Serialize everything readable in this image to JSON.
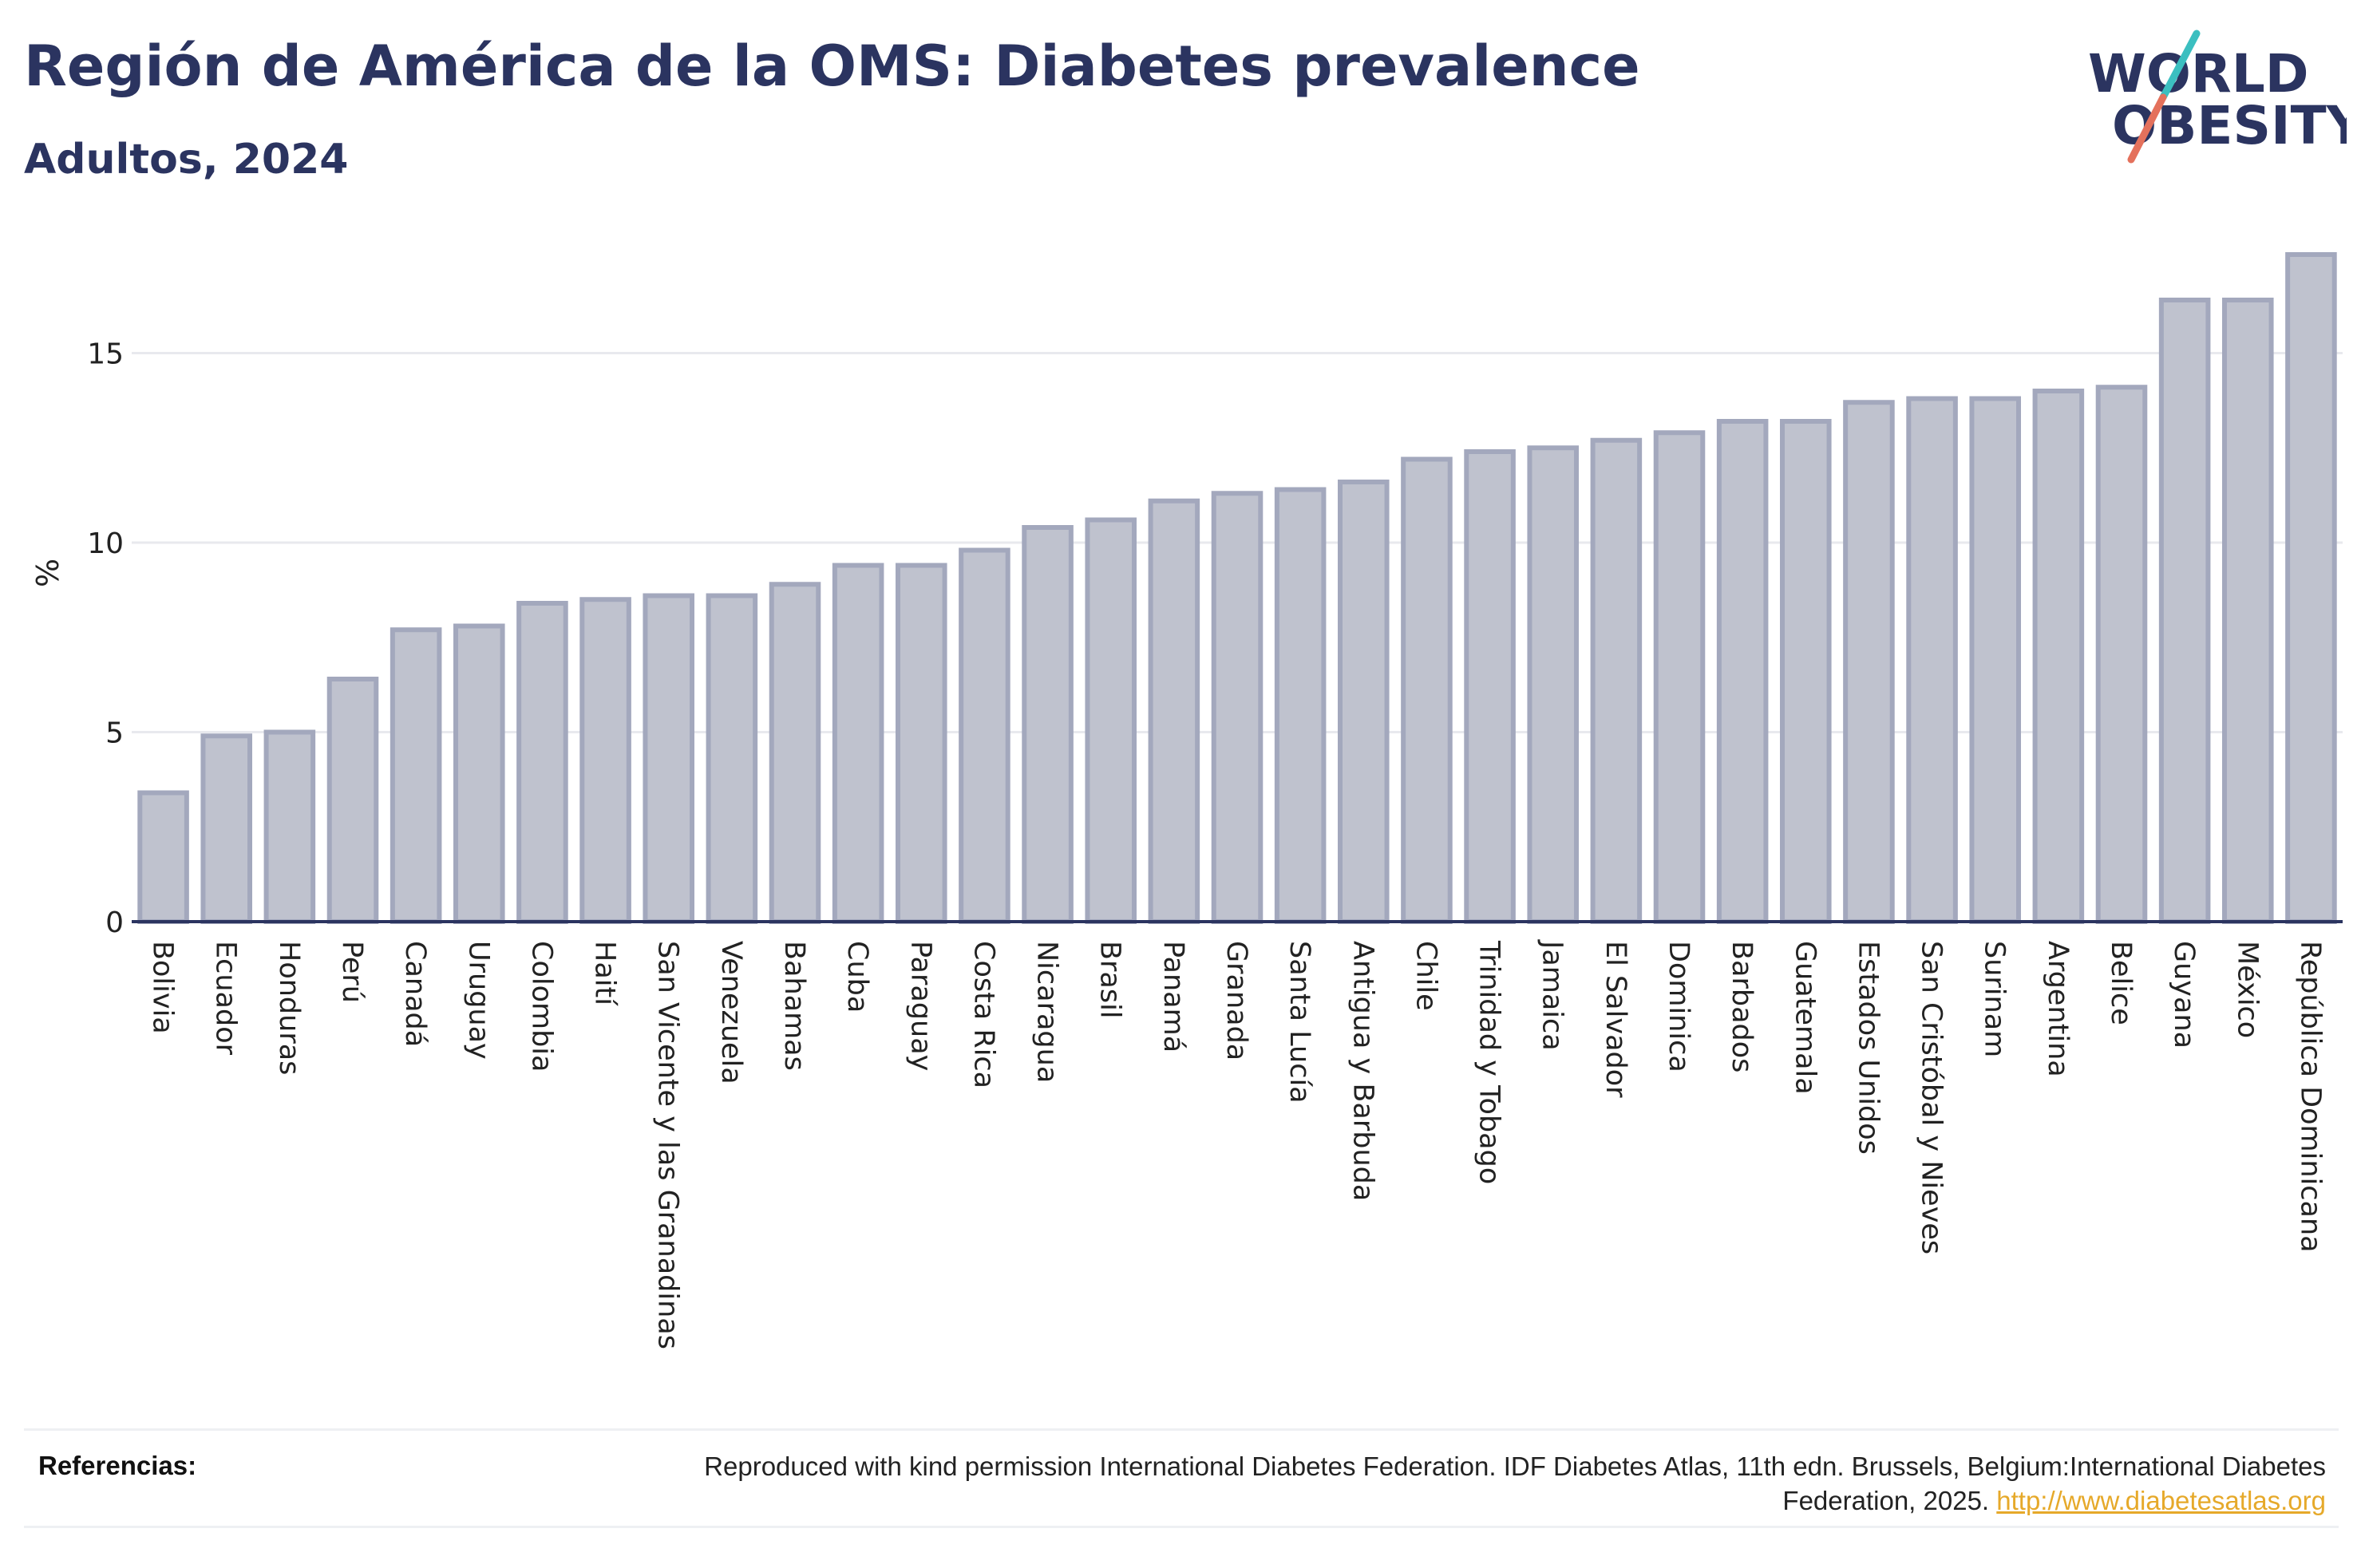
{
  "header": {
    "title": "Región de América de la OMS: Diabetes prevalence",
    "subtitle": "Adultos, 2024"
  },
  "logo": {
    "line1": "WORLD",
    "line2": "OBESITY",
    "slash_colors": [
      "#3bbfc0",
      "#e4715c"
    ],
    "text_color": "#2b3460"
  },
  "colors": {
    "bar_fill": "#bfc2ce",
    "bar_stroke": "#a3a8bd",
    "grid": "#e8e9ee",
    "axis": "#2b3460",
    "link": "#e6a92a"
  },
  "chart_data": {
    "type": "bar",
    "ylabel": "%",
    "xlabel": "",
    "ylim": [
      0,
      18
    ],
    "yticks": [
      0,
      5,
      10,
      15
    ],
    "grid": true,
    "categories": [
      "Bolivia",
      "Ecuador",
      "Honduras",
      "Perú",
      "Canadá",
      "Uruguay",
      "Colombia",
      "Haití",
      "San Vicente y las Granadinas",
      "Venezuela",
      "Bahamas",
      "Cuba",
      "Paraguay",
      "Costa Rica",
      "Nicaragua",
      "Brasil",
      "Panamá",
      "Granada",
      "Santa Lucía",
      "Antigua y Barbuda",
      "Chile",
      "Trinidad y Tobago",
      "Jamaica",
      "El Salvador",
      "Dominica",
      "Barbados",
      "Guatemala",
      "Estados Unidos",
      "San Cristóbal y Nieves",
      "Surinam",
      "Argentina",
      "Belice",
      "Guyana",
      "México",
      "República Dominicana"
    ],
    "values": [
      3.4,
      4.9,
      5.0,
      6.4,
      7.7,
      7.8,
      8.4,
      8.5,
      8.6,
      8.6,
      8.9,
      9.4,
      9.4,
      9.8,
      10.4,
      10.6,
      11.1,
      11.3,
      11.4,
      11.6,
      12.2,
      12.4,
      12.5,
      12.7,
      12.9,
      13.2,
      13.2,
      13.7,
      13.8,
      13.8,
      14.0,
      14.1,
      16.4,
      16.4,
      17.6
    ]
  },
  "references": {
    "label": "Referencias:",
    "text": "Reproduced with kind permission International Diabetes Federation. IDF Diabetes Atlas, 11th edn. Brussels, Belgium:International Diabetes Federation, 2025.",
    "link_text": "http://www.diabetesatlas.org"
  }
}
